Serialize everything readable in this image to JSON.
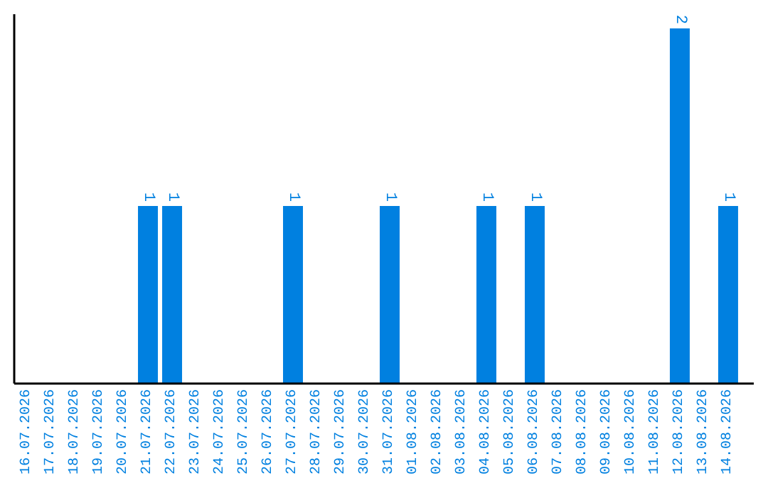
{
  "chart_data": {
    "type": "bar",
    "categories": [
      "16.07.2026",
      "17.07.2026",
      "18.07.2026",
      "19.07.2026",
      "20.07.2026",
      "21.07.2026",
      "22.07.2026",
      "23.07.2026",
      "24.07.2026",
      "25.07.2026",
      "26.07.2026",
      "27.07.2026",
      "28.07.2026",
      "29.07.2026",
      "30.07.2026",
      "31.07.2026",
      "01.08.2026",
      "02.08.2026",
      "03.08.2026",
      "04.08.2026",
      "05.08.2026",
      "06.08.2026",
      "07.08.2026",
      "08.08.2026",
      "09.08.2026",
      "10.08.2026",
      "11.08.2026",
      "12.08.2026",
      "13.08.2026",
      "14.08.2026"
    ],
    "values": [
      0,
      0,
      0,
      0,
      0,
      1,
      1,
      0,
      0,
      0,
      0,
      1,
      0,
      0,
      0,
      1,
      0,
      0,
      0,
      1,
      0,
      1,
      0,
      0,
      0,
      0,
      0,
      2,
      0,
      1
    ],
    "value_labels": [
      null,
      null,
      null,
      null,
      null,
      "1",
      "1",
      null,
      null,
      null,
      null,
      "1",
      null,
      null,
      null,
      "1",
      null,
      null,
      null,
      "1",
      null,
      "1",
      null,
      null,
      null,
      null,
      null,
      "2",
      null,
      "1"
    ],
    "color": "#0080e0",
    "tick_labels": "x"
  }
}
